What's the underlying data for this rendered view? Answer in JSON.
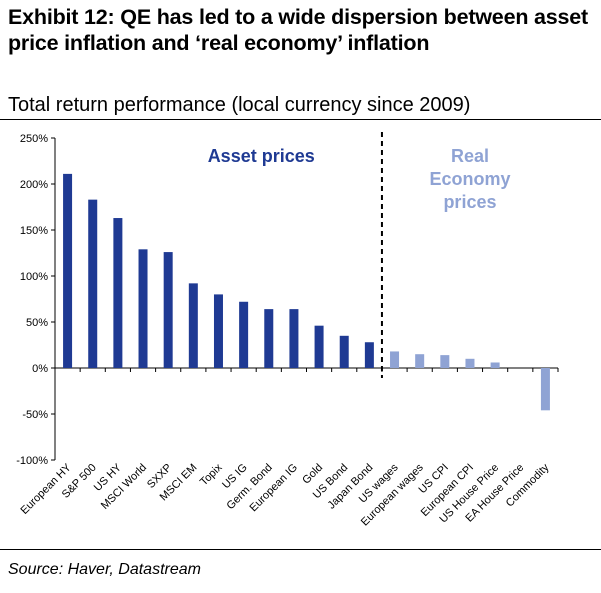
{
  "header": {
    "title": "Exhibit 12: QE has led to a wide dispersion between asset price inflation and ‘real economy’ inflation",
    "subtitle": "Total return performance (local currency since 2009)"
  },
  "footer": {
    "source": "Source: Haver, Datastream"
  },
  "chart_data": {
    "type": "bar",
    "title": "",
    "xlabel": "",
    "ylabel": "",
    "ylim": [
      -100,
      250
    ],
    "yticks": [
      -100,
      -50,
      0,
      50,
      100,
      150,
      200,
      250
    ],
    "ytick_labels": [
      "-100%",
      "-50%",
      "0%",
      "50%",
      "100%",
      "150%",
      "200%",
      "250%"
    ],
    "grid": false,
    "categories": [
      "European HY",
      "S&P 500",
      "US HY",
      "MSCI World",
      "SXXP",
      "MSCI EM",
      "Topix",
      "US IG",
      "Germ. Bond",
      "European IG",
      "Gold",
      "US Bond",
      "Japan Bond",
      "US wages",
      "European wages",
      "US CPI",
      "European CPI",
      "US House Price",
      "EA House Price",
      "Commodity"
    ],
    "values": [
      211,
      183,
      163,
      129,
      126,
      92,
      80,
      72,
      64,
      64,
      46,
      35,
      28,
      18,
      15,
      14,
      10,
      6,
      0,
      -46
    ],
    "groups": [
      {
        "label": "Asset prices",
        "color": "#1f3a93",
        "count": 13
      },
      {
        "label": "Real Economy prices",
        "label_lines": [
          "Real",
          "Economy",
          "prices"
        ],
        "color": "#8fa3d4",
        "count": 7
      }
    ],
    "divider": "dashed-black-between-groups"
  }
}
